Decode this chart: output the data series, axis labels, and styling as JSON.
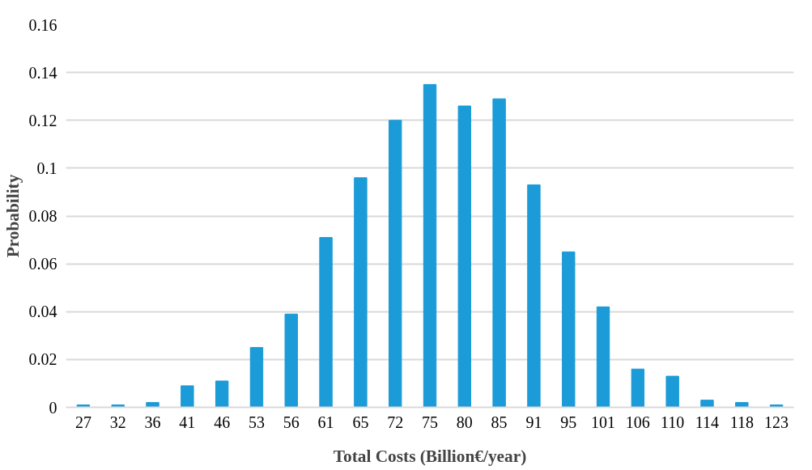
{
  "chart_data": {
    "type": "bar",
    "xlabel": "Total Costs (Billion€/year)",
    "ylabel": "Probability",
    "categories": [
      "27",
      "32",
      "36",
      "41",
      "46",
      "53",
      "56",
      "61",
      "65",
      "72",
      "75",
      "80",
      "85",
      "91",
      "95",
      "101",
      "106",
      "110",
      "114",
      "118",
      "123"
    ],
    "values": [
      0.001,
      0.001,
      0.002,
      0.009,
      0.011,
      0.025,
      0.039,
      0.071,
      0.096,
      0.12,
      0.135,
      0.126,
      0.129,
      0.093,
      0.065,
      0.042,
      0.016,
      0.013,
      0.003,
      0.002,
      0.001
    ],
    "color": "#1b9bd7",
    "ylim": [
      0,
      0.16
    ],
    "yticks": [
      0,
      0.02,
      0.04,
      0.06,
      0.08,
      {
        "value": 0.1,
        "label": "0.1"
      },
      0.12,
      0.14,
      0.16
    ],
    "grid": "y"
  }
}
